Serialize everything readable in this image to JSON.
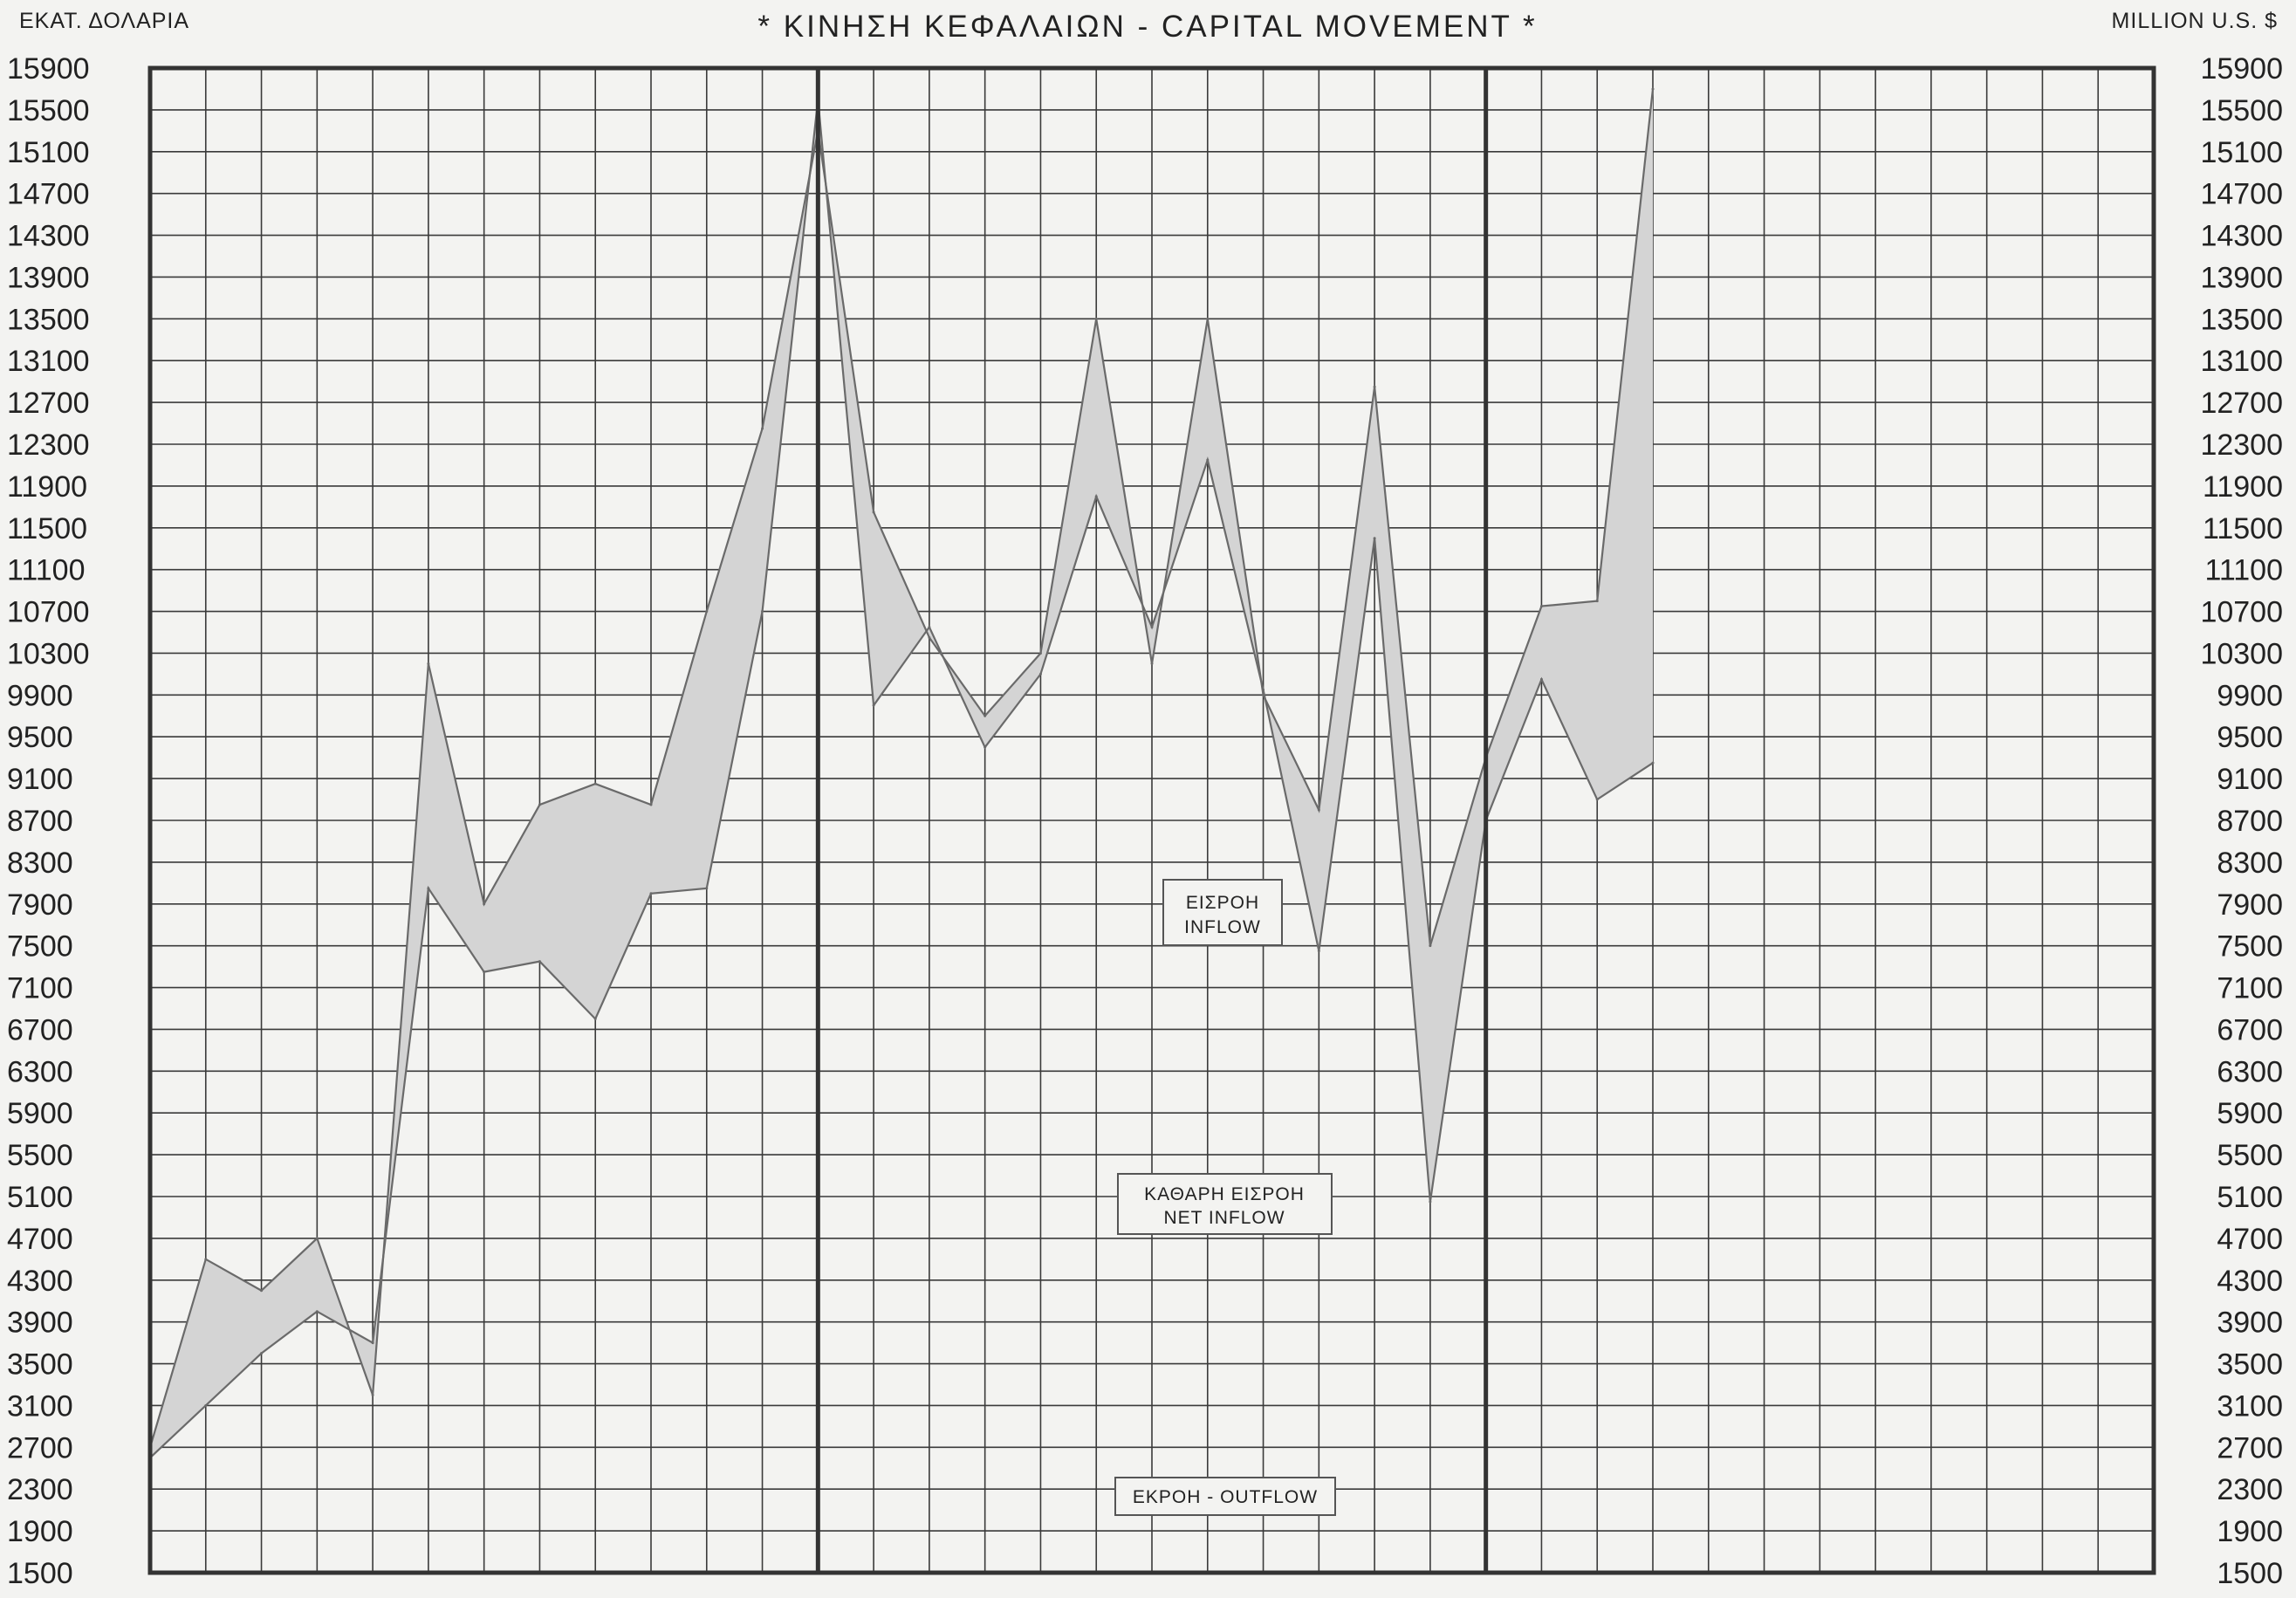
{
  "chart_data": {
    "type": "area",
    "title": "* ΚΙΝΗΣΗ ΚΕΦΑΛΑΙΩΝ - CAPITAL MOVEMENT *",
    "left_unit_label": "ΕΚΑΤ. ΔΟΛΑΡΙΑ",
    "right_unit_label": "MILLION U.S. $",
    "ylim": [
      1500,
      15900
    ],
    "yticks": [
      1500,
      1900,
      2300,
      2700,
      3100,
      3500,
      3900,
      4300,
      4700,
      5100,
      5500,
      5900,
      6300,
      6700,
      7100,
      7500,
      7900,
      8300,
      8700,
      9100,
      9500,
      9900,
      10300,
      10700,
      11100,
      11500,
      11900,
      12300,
      12700,
      13100,
      13500,
      13900,
      14300,
      14700,
      15100,
      15500,
      15900
    ],
    "n_columns": 36,
    "period_separators": [
      12,
      24
    ],
    "grid": true,
    "series": [
      {
        "name": "ΕΙΣΡΟΗ INFLOW",
        "x": [
          0,
          1,
          2,
          3,
          4,
          5,
          6,
          7,
          8,
          9,
          10,
          11,
          12,
          13,
          14,
          15,
          16,
          17,
          18,
          19,
          20,
          21,
          22,
          23,
          24,
          25,
          26,
          27
        ],
        "values": [
          2700,
          4500,
          4200,
          4700,
          3200,
          10200,
          7900,
          8850,
          9050,
          8850,
          10700,
          12450,
          15300,
          11650,
          10450,
          9700,
          10300,
          13500,
          10200,
          13500,
          9900,
          8800,
          12850,
          7500,
          9300,
          10750,
          10800,
          15700
        ]
      },
      {
        "name": "ΚΑΘΑΡΗ ΕΙΣΡΟΗ NET INFLOW",
        "x": [
          0,
          1,
          2,
          3,
          4,
          5,
          6,
          7,
          8,
          9,
          10,
          11,
          12,
          13,
          14,
          15,
          16,
          17,
          18,
          19,
          20,
          21,
          22,
          23,
          24,
          25,
          26,
          27
        ],
        "values": [
          2600,
          3100,
          3600,
          4000,
          3700,
          8050,
          7250,
          7350,
          6800,
          8000,
          8050,
          10700,
          15600,
          9800,
          10550,
          9400,
          10100,
          11800,
          10550,
          12150,
          9950,
          7450,
          11400,
          5050,
          8700,
          10050,
          8900,
          9250
        ]
      }
    ],
    "annotations": [
      {
        "line1": "ΕΙΣΡΟΗ",
        "line2": "INFLOW"
      },
      {
        "line1": "ΚΑΘΑΡΗ ΕΙΣΡΟΗ",
        "line2": "NET INFLOW"
      },
      {
        "line1": "ΕΚΡΟΗ - OUTFLOW",
        "line2": ""
      }
    ],
    "colors": {
      "background": "#f3f3f1",
      "grid": "#3a3a3a",
      "frame": "#333333",
      "band_fill": "#d4d4d4",
      "series_line": "#6a6a6a",
      "text": "#222222"
    }
  }
}
